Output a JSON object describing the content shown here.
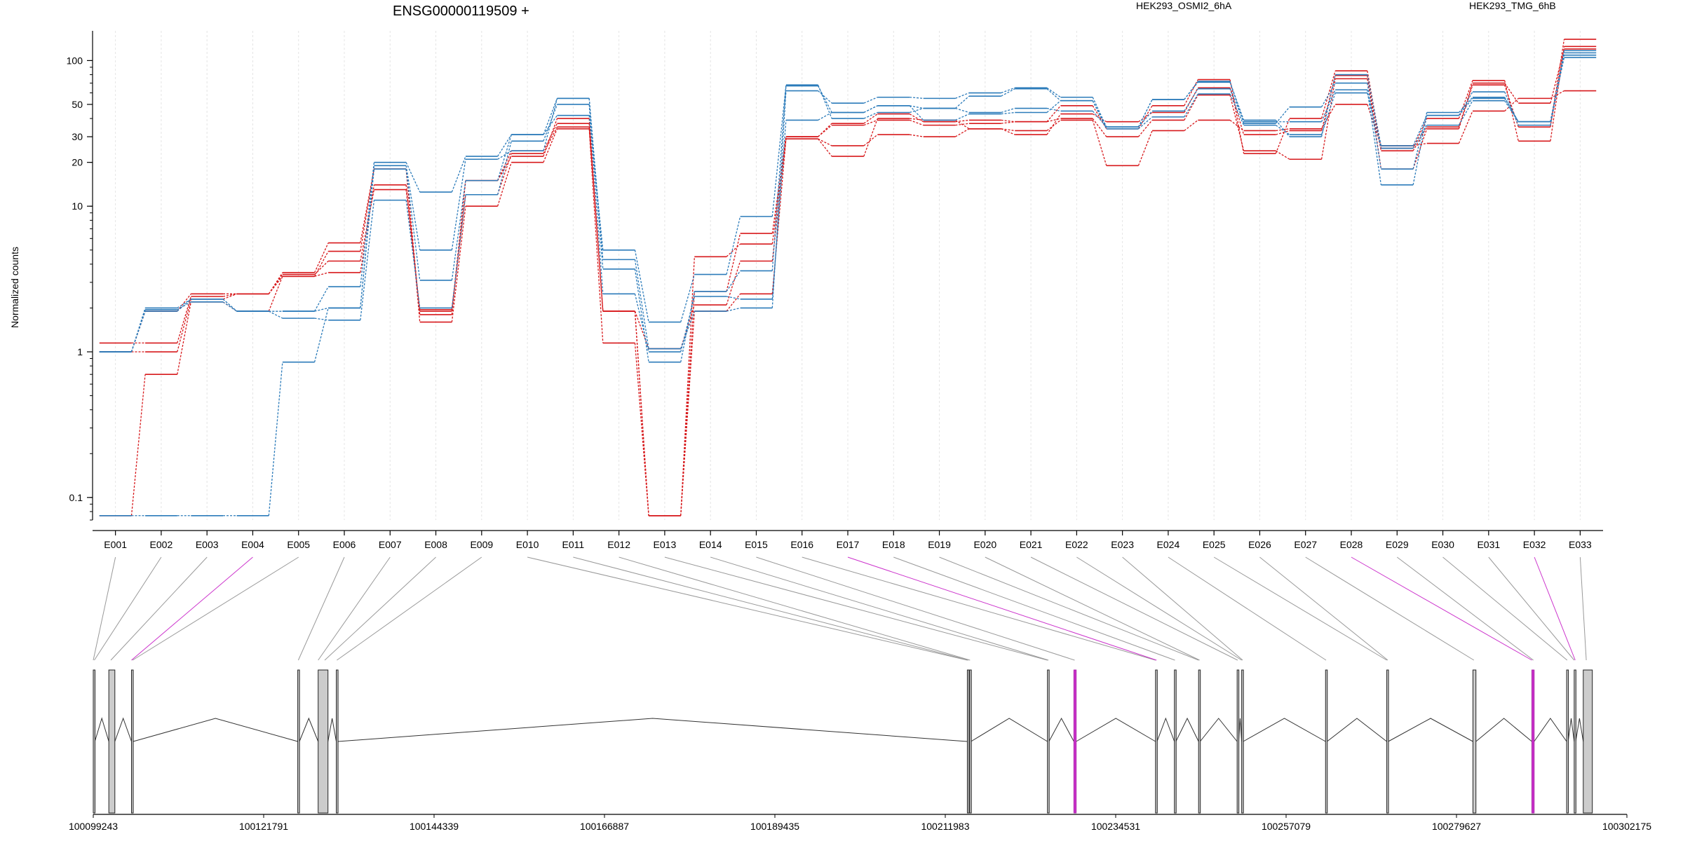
{
  "title": "ENSG00000119509 +",
  "ylabel": "Normalized counts",
  "colors": {
    "red": "#d7191c",
    "blue": "#2b7bba",
    "purple": "#cc33cc",
    "gray": "#777777",
    "exon_fill": "#cccccc"
  },
  "legend": [
    "HEK293_OSMI2_6hA",
    "HEK293_TMG_6hB"
  ],
  "chart_data": {
    "type": "line",
    "title": "ENSG00000119509 +",
    "ylabel": "Normalized counts",
    "xlabel": "",
    "yscale": "log",
    "ylim": [
      0.07,
      160
    ],
    "yticks": [
      "0.1",
      "1",
      "10",
      "20",
      "30",
      "50",
      "100"
    ],
    "categories": [
      "E001",
      "E002",
      "E003",
      "E004",
      "E005",
      "E006",
      "E007",
      "E008",
      "E009",
      "E010",
      "E011",
      "E012",
      "E013",
      "E014",
      "E015",
      "E016",
      "E017",
      "E018",
      "E019",
      "E020",
      "E021",
      "E022",
      "E023",
      "E024",
      "E025",
      "E026",
      "E027",
      "E028",
      "E029",
      "E030",
      "E031",
      "E032",
      "E033"
    ],
    "series": [
      {
        "group": "HEK293_OSMI2_6hA",
        "color": "red",
        "values": [
          1.15,
          1.15,
          2.4,
          2.5,
          3.3,
          3.5,
          14,
          1.9,
          15,
          24,
          37,
          1.9,
          1.05,
          2.1,
          4.2,
          29,
          26,
          31,
          30,
          34,
          33,
          39,
          19,
          33,
          39,
          33,
          34,
          50,
          26,
          27,
          45,
          55,
          62
        ]
      },
      {
        "group": "HEK293_OSMI2_6hA",
        "color": "red",
        "values": [
          1.0,
          1.0,
          2.3,
          2.5,
          3.4,
          4.2,
          13,
          1.95,
          12,
          23,
          35,
          1.9,
          0.075,
          2.6,
          6.5,
          30,
          36,
          39,
          36,
          37,
          38,
          40,
          30,
          39,
          58,
          24,
          21,
          75,
          24,
          35,
          70,
          51,
          120
        ]
      },
      {
        "group": "HEK293_OSMI2_6hA",
        "color": "red",
        "values": [
          0.075,
          0.7,
          2.2,
          1.9,
          3.3,
          4.9,
          18,
          1.6,
          10,
          20,
          34,
          1.15,
          0.075,
          1.9,
          2.5,
          29,
          22,
          40,
          39,
          34,
          31,
          43,
          38,
          44,
          65,
          31,
          33,
          79,
          18,
          34,
          68,
          35,
          140
        ]
      },
      {
        "group": "HEK293_OSMI2_6hA",
        "color": "red",
        "values": [
          1.0,
          1.9,
          2.5,
          2.5,
          3.5,
          5.6,
          18,
          1.8,
          15,
          22,
          40,
          1.9,
          0.075,
          4.5,
          5.5,
          30,
          37,
          43,
          38,
          39,
          38,
          49,
          34,
          49,
          74,
          23,
          40,
          85,
          25,
          40,
          73,
          28,
          125
        ]
      },
      {
        "group": "HEK293_TMG_6hB",
        "color": "blue",
        "values": [
          1.0,
          1.95,
          2.2,
          1.9,
          1.7,
          1.65,
          11,
          2.0,
          12,
          28,
          50,
          2.5,
          1.0,
          2.4,
          2.3,
          39,
          44,
          49,
          39,
          43,
          44,
          53,
          34,
          41,
          59,
          36,
          31,
          60,
          25,
          36,
          53,
          38,
          105
        ]
      },
      {
        "group": "HEK293_TMG_6hB",
        "color": "blue",
        "values": [
          0.075,
          0.075,
          0.075,
          0.075,
          0.85,
          2.0,
          18,
          3.1,
          15,
          31,
          55,
          3.7,
          0.85,
          2.6,
          3.6,
          67,
          44,
          49,
          47,
          57,
          64,
          53,
          35,
          45,
          64,
          38,
          38,
          63,
          14,
          42,
          61,
          36,
          109
        ]
      },
      {
        "group": "HEK293_TMG_6hB",
        "color": "blue",
        "values": [
          1.0,
          2.0,
          2.3,
          1.9,
          1.9,
          2.0,
          19,
          5.0,
          21,
          24,
          55,
          4.3,
          1.05,
          1.9,
          2.0,
          62,
          51,
          56,
          55,
          60,
          65,
          56,
          35,
          54,
          72,
          37,
          48,
          70,
          18,
          44,
          56,
          38,
          113
        ]
      },
      {
        "group": "HEK293_TMG_6hB",
        "color": "blue",
        "values": [
          1.0,
          1.9,
          2.3,
          1.9,
          1.9,
          2.8,
          20,
          12.5,
          22,
          31,
          42,
          5.0,
          1.6,
          3.4,
          8.5,
          68,
          40,
          44,
          47,
          44,
          47,
          45,
          35,
          54,
          71,
          39,
          30,
          80,
          26,
          42,
          55,
          38,
          117
        ]
      }
    ],
    "genomic_axis": {
      "ticks": [
        "100099243",
        "100121791",
        "100144339",
        "100166887",
        "100189435",
        "100211983",
        "100234531",
        "100257079",
        "100279627",
        "100302175"
      ],
      "range": [
        100099243,
        100302175
      ]
    },
    "exons": [
      {
        "id": "E001",
        "start": 100099243,
        "end": 100099450,
        "highlight": false
      },
      {
        "id": "E002",
        "start": 100101300,
        "end": 100102100,
        "highlight": false
      },
      {
        "id": "E003",
        "start": 100104300,
        "end": 100104520,
        "highlight": false
      },
      {
        "id": "E004",
        "start": 100126300,
        "end": 100126520,
        "highlight": false
      },
      {
        "id": "E005",
        "start": 100129000,
        "end": 100130300,
        "highlight": false
      },
      {
        "id": "E006",
        "start": 100131400,
        "end": 100131620,
        "highlight": false
      },
      {
        "id": "E007",
        "start": 100214900,
        "end": 100215080,
        "highlight": false
      },
      {
        "id": "E008",
        "start": 100215200,
        "end": 100215380,
        "highlight": false
      },
      {
        "id": "E009",
        "start": 100225500,
        "end": 100225700,
        "highlight": false
      },
      {
        "id": "E010",
        "start": 100229000,
        "end": 100229300,
        "highlight": true
      },
      {
        "id": "E011",
        "start": 100239800,
        "end": 100240000,
        "highlight": false
      },
      {
        "id": "E012",
        "start": 100242300,
        "end": 100242500,
        "highlight": false
      },
      {
        "id": "E013",
        "start": 100245500,
        "end": 100245700,
        "highlight": false
      },
      {
        "id": "E014",
        "start": 100250600,
        "end": 100250800,
        "highlight": false
      },
      {
        "id": "E015",
        "start": 100251200,
        "end": 100251400,
        "highlight": false
      },
      {
        "id": "E016",
        "start": 100262300,
        "end": 100262500,
        "highlight": false
      },
      {
        "id": "E017",
        "start": 100270400,
        "end": 100270600,
        "highlight": false
      },
      {
        "id": "E018",
        "start": 100281800,
        "end": 100282200,
        "highlight": false
      },
      {
        "id": "E019",
        "start": 100289600,
        "end": 100289900,
        "highlight": true
      },
      {
        "id": "E020",
        "start": 100294200,
        "end": 100294400,
        "highlight": false
      },
      {
        "id": "E021",
        "start": 100295200,
        "end": 100295400,
        "highlight": false
      },
      {
        "id": "E022",
        "start": 100296400,
        "end": 100297600,
        "highlight": false
      }
    ]
  }
}
